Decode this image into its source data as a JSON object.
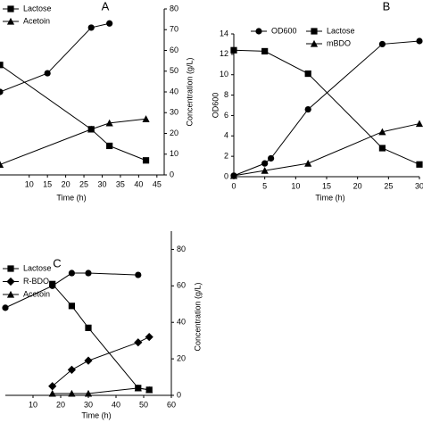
{
  "chart_data": [
    {
      "type": "line",
      "title": "A",
      "xlabel": "Time (h)",
      "ylabel": "Concentration (g/L)",
      "yaxis_side": "right",
      "xlim": [
        2,
        47
      ],
      "xticks": [
        10,
        15,
        20,
        25,
        30,
        35,
        40,
        45
      ],
      "ylim": [
        0,
        80
      ],
      "yticks": [
        0,
        10,
        20,
        30,
        40,
        50,
        60,
        70,
        80
      ],
      "series": [
        {
          "marker": "circle",
          "color": "#000000",
          "x": [
            2,
            15,
            27,
            32
          ],
          "values": [
            40,
            49,
            71,
            73
          ]
        },
        {
          "name": "Lactose",
          "marker": "square",
          "color": "#000000",
          "x": [
            2,
            27,
            32,
            42
          ],
          "values": [
            53,
            22,
            14,
            7
          ]
        },
        {
          "name": "Acetoin",
          "marker": "triangle",
          "color": "#000000",
          "x": [
            2,
            27,
            32,
            42
          ],
          "values": [
            5,
            22,
            25,
            27
          ]
        }
      ]
    },
    {
      "type": "line",
      "title": "B",
      "xlabel": "Time (h)",
      "ylabel": "OD600",
      "yaxis_side": "left",
      "xlim": [
        0,
        30
      ],
      "xticks": [
        0,
        5,
        10,
        15,
        20,
        25,
        30
      ],
      "ylim": [
        0,
        14
      ],
      "yticks": [
        0,
        2,
        4,
        6,
        8,
        10,
        12,
        14
      ],
      "series": [
        {
          "name": "OD600",
          "marker": "circle",
          "color": "#000000",
          "x": [
            0,
            5,
            6,
            12,
            24,
            30
          ],
          "values": [
            0.1,
            1.3,
            1.8,
            6.6,
            13,
            13.3
          ]
        },
        {
          "name": "Lactose",
          "marker": "square",
          "color": "#000000",
          "x": [
            0,
            5,
            12,
            24,
            30
          ],
          "values": [
            12.4,
            12.3,
            10.1,
            2.8,
            1.2
          ]
        },
        {
          "name": "mBDO",
          "marker": "triangle",
          "color": "#000000",
          "x": [
            0,
            5,
            12,
            24,
            30
          ],
          "values": [
            0.1,
            0.6,
            1.3,
            4.4,
            5.2
          ]
        }
      ]
    },
    {
      "type": "line",
      "title": "C",
      "xlabel": "Time (h)",
      "ylabel": "Concentration (g/L)",
      "yaxis_side": "right",
      "xlim": [
        0,
        60
      ],
      "xticks": [
        10,
        20,
        30,
        40,
        50,
        60
      ],
      "ylim": [
        0,
        90
      ],
      "yticks": [
        0,
        20,
        40,
        60,
        80
      ],
      "series": [
        {
          "marker": "circle",
          "color": "#000000",
          "x": [
            0,
            17,
            24,
            30,
            48
          ],
          "values": [
            48,
            60,
            67,
            67,
            66
          ]
        },
        {
          "name": "Lactose",
          "marker": "square",
          "color": "#000000",
          "x": [
            17,
            24,
            30,
            48,
            52
          ],
          "values": [
            61,
            49,
            37,
            4,
            3
          ]
        },
        {
          "name": "R-BDO",
          "marker": "diamond",
          "color": "#000000",
          "x": [
            17,
            24,
            30,
            48,
            52
          ],
          "values": [
            5,
            14,
            19,
            29,
            32
          ]
        },
        {
          "name": "Acetoin",
          "marker": "triangle",
          "color": "#000000",
          "x": [
            17,
            24,
            30,
            48,
            52
          ],
          "values": [
            1,
            1,
            1,
            4,
            3
          ]
        }
      ]
    }
  ]
}
